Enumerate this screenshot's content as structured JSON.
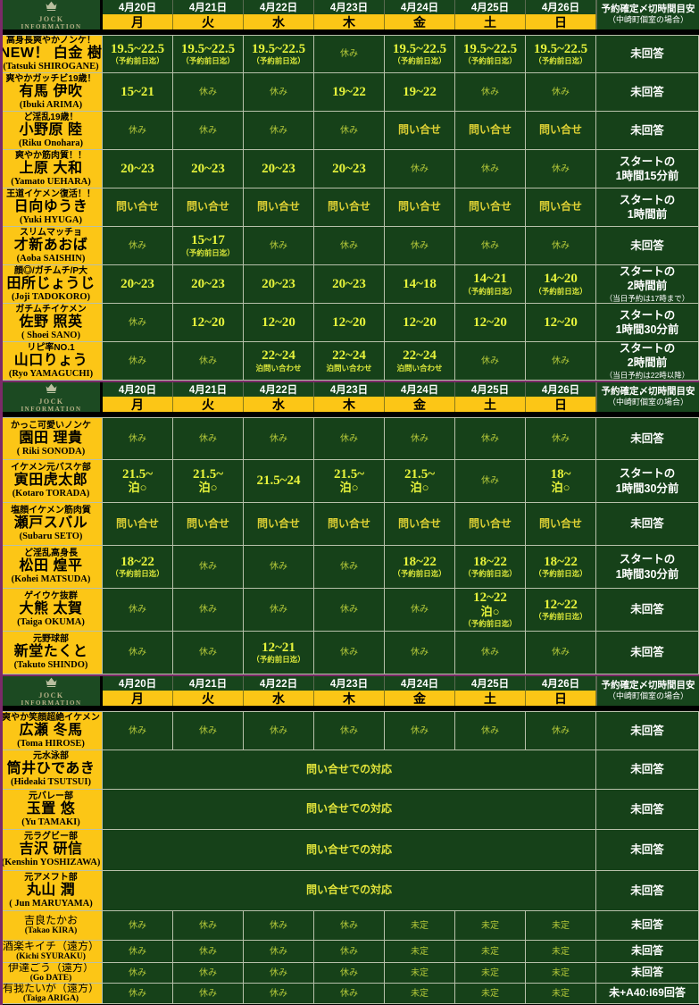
{
  "colors": {
    "gold": "#fcc616",
    "cell_green": "#164119",
    "header_green": "#17451c",
    "logo_green": "#1c4a22",
    "purple": "#7b2a68",
    "time_text": "#e6f33b",
    "off_text": "#b4c839",
    "inquiry_text": "#ddd034",
    "border": "#b7c0aa",
    "white": "#ffffff",
    "black": "#000000"
  },
  "header": {
    "logo": {
      "icon": "crown-icon",
      "line1": "JOCK",
      "line2": "INFORMATION"
    },
    "dates": [
      "4月20日",
      "4月21日",
      "4月22日",
      "4月23日",
      "4月24日",
      "4月25日",
      "4月26日"
    ],
    "days": [
      "月",
      "火",
      "水",
      "木",
      "金",
      "土",
      "日"
    ],
    "deadline_title": "予約確定〆切時間目安",
    "deadline_sub": "（中崎町個室の場合）"
  },
  "sections": [
    {
      "rows": [
        {
          "tag": "高身長爽やかノンケ！",
          "name": "NEW！ 白金 樹",
          "romaji": "(Tatsuki SHIROGANE)",
          "cells": [
            {
              "c": "time",
              "m": "19.5~22.5",
              "s": "（予約前日迄）"
            },
            {
              "c": "time",
              "m": "19.5~22.5",
              "s": "（予約前日迄）"
            },
            {
              "c": "time",
              "m": "19.5~22.5",
              "s": "（予約前日迄）"
            },
            {
              "c": "off",
              "m": "休み"
            },
            {
              "c": "time",
              "m": "19.5~22.5",
              "s": "（予約前日迄）"
            },
            {
              "c": "time",
              "m": "19.5~22.5",
              "s": "（予約前日迄）"
            },
            {
              "c": "time",
              "m": "19.5~22.5",
              "s": "（予約前日迄）"
            }
          ],
          "deadline": {
            "lines": [
              "未回答"
            ]
          }
        },
        {
          "tag": "爽やかガッチビ19歳！",
          "name": "有馬 伊吹",
          "romaji": "(Ibuki ARIMA)",
          "cells": [
            {
              "c": "time",
              "m": "15~21"
            },
            {
              "c": "off",
              "m": "休み"
            },
            {
              "c": "off",
              "m": "休み"
            },
            {
              "c": "time",
              "m": "19~22"
            },
            {
              "c": "time",
              "m": "19~22"
            },
            {
              "c": "off",
              "m": "休み"
            },
            {
              "c": "off",
              "m": "休み"
            }
          ],
          "deadline": {
            "lines": [
              "未回答"
            ]
          }
        },
        {
          "tag": "ど淫乱19歳！",
          "name": "小野原 陸",
          "romaji": "(Riku Onohara)",
          "cells": [
            {
              "c": "off",
              "m": "休み"
            },
            {
              "c": "off",
              "m": "休み"
            },
            {
              "c": "off",
              "m": "休み"
            },
            {
              "c": "off",
              "m": "休み"
            },
            {
              "c": "inq",
              "m": "問い合せ"
            },
            {
              "c": "inq",
              "m": "問い合せ"
            },
            {
              "c": "inq",
              "m": "問い合せ"
            }
          ],
          "deadline": {
            "lines": [
              "未回答"
            ]
          }
        },
        {
          "tag": "爽やか筋肉質！！",
          "name": "上原 大和",
          "romaji": "(Yamato UEHARA)",
          "cells": [
            {
              "c": "time",
              "m": "20~23"
            },
            {
              "c": "time",
              "m": "20~23"
            },
            {
              "c": "time",
              "m": "20~23"
            },
            {
              "c": "time",
              "m": "20~23"
            },
            {
              "c": "off",
              "m": "休み"
            },
            {
              "c": "off",
              "m": "休み"
            },
            {
              "c": "off",
              "m": "休み"
            }
          ],
          "deadline": {
            "lines": [
              "スタートの",
              "1時間15分前"
            ]
          }
        },
        {
          "tag": "王道イケメン復活！！",
          "name": "日向ゆうき",
          "romaji": "(Yuki HYUGA)",
          "cells": [
            {
              "c": "inq",
              "m": "問い合せ"
            },
            {
              "c": "inq",
              "m": "問い合せ"
            },
            {
              "c": "inq",
              "m": "問い合せ"
            },
            {
              "c": "inq",
              "m": "問い合せ"
            },
            {
              "c": "inq",
              "m": "問い合せ"
            },
            {
              "c": "inq",
              "m": "問い合せ"
            },
            {
              "c": "inq",
              "m": "問い合せ"
            }
          ],
          "deadline": {
            "lines": [
              "スタートの",
              "1時間前"
            ]
          }
        },
        {
          "tag": "スリムマッチョ",
          "name": "才新あおば",
          "romaji": "(Aoba SAISHIN)",
          "cells": [
            {
              "c": "off",
              "m": "休み"
            },
            {
              "c": "time",
              "m": "15~17",
              "s": "（予約前日迄）"
            },
            {
              "c": "off",
              "m": "休み"
            },
            {
              "c": "off",
              "m": "休み"
            },
            {
              "c": "off",
              "m": "休み"
            },
            {
              "c": "off",
              "m": "休み"
            },
            {
              "c": "off",
              "m": "休み"
            }
          ],
          "deadline": {
            "lines": [
              "未回答"
            ]
          }
        },
        {
          "tag": "顔◎/ガチムチ/P大",
          "name": "田所じょうじ",
          "romaji": "(Joji TADOKORO)",
          "cells": [
            {
              "c": "time",
              "m": "20~23"
            },
            {
              "c": "time",
              "m": "20~23"
            },
            {
              "c": "time",
              "m": "20~23"
            },
            {
              "c": "time",
              "m": "20~23"
            },
            {
              "c": "time",
              "m": "14~18"
            },
            {
              "c": "time",
              "m": "14~21",
              "s": "（予約前日迄）"
            },
            {
              "c": "time",
              "m": "14~20",
              "s": "（予約前日迄）"
            }
          ],
          "deadline": {
            "lines": [
              "スタートの",
              "2時間前"
            ],
            "note": "（当日予約は17時まで）"
          }
        },
        {
          "tag": "ガチムチイケメン",
          "name": "佐野 照英",
          "romaji": "( Shoei SANO)",
          "cells": [
            {
              "c": "off",
              "m": "休み"
            },
            {
              "c": "time",
              "m": "12~20"
            },
            {
              "c": "time",
              "m": "12~20"
            },
            {
              "c": "time",
              "m": "12~20"
            },
            {
              "c": "time",
              "m": "12~20"
            },
            {
              "c": "time",
              "m": "12~20"
            },
            {
              "c": "time",
              "m": "12~20"
            }
          ],
          "deadline": {
            "lines": [
              "スタートの",
              "1時間30分前"
            ]
          }
        },
        {
          "tag": "リピ率NO.1",
          "name": "山口りょう",
          "romaji": "(Ryo YAMAGUCHI)",
          "cells": [
            {
              "c": "off",
              "m": "休み"
            },
            {
              "c": "off",
              "m": "休み"
            },
            {
              "c": "time",
              "m": "22~24",
              "s": "泊問い合わせ"
            },
            {
              "c": "time",
              "m": "22~24",
              "s": "泊問い合わせ"
            },
            {
              "c": "time",
              "m": "22~24",
              "s": "泊問い合わせ"
            },
            {
              "c": "off",
              "m": "休み"
            },
            {
              "c": "off",
              "m": "休み"
            }
          ],
          "deadline": {
            "lines": [
              "スタートの",
              "2時間前"
            ],
            "note": "（当日予約は22時以降）"
          }
        }
      ]
    },
    {
      "rows": [
        {
          "tag": "かっこ可愛いノンケ",
          "name": "園田 理貴",
          "romaji": "( Riki SONODA)",
          "cells": [
            {
              "c": "off",
              "m": "休み"
            },
            {
              "c": "off",
              "m": "休み"
            },
            {
              "c": "off",
              "m": "休み"
            },
            {
              "c": "off",
              "m": "休み"
            },
            {
              "c": "off",
              "m": "休み"
            },
            {
              "c": "off",
              "m": "休み"
            },
            {
              "c": "off",
              "m": "休み"
            }
          ],
          "deadline": {
            "lines": [
              "未回答"
            ]
          }
        },
        {
          "tag": "イケメン元バスケ部",
          "name": "寅田虎太郎",
          "romaji": "(Kotaro TORADA)",
          "cells": [
            {
              "c": "time",
              "m": "21.5~",
              "m2": "泊○"
            },
            {
              "c": "time",
              "m": "21.5~",
              "m2": "泊○"
            },
            {
              "c": "time",
              "m": "21.5~24"
            },
            {
              "c": "time",
              "m": "21.5~",
              "m2": "泊○"
            },
            {
              "c": "time",
              "m": "21.5~",
              "m2": "泊○"
            },
            {
              "c": "off",
              "m": "休み"
            },
            {
              "c": "time",
              "m": "18~",
              "m2": "泊○"
            }
          ],
          "deadline": {
            "lines": [
              "スタートの",
              "1時間30分前"
            ]
          }
        },
        {
          "tag": "塩顔イケメン筋肉質",
          "name": "瀬戸スバル",
          "romaji": "(Subaru SETO)",
          "cells": [
            {
              "c": "inq",
              "m": "問い合せ"
            },
            {
              "c": "inq",
              "m": "問い合せ"
            },
            {
              "c": "inq",
              "m": "問い合せ"
            },
            {
              "c": "inq",
              "m": "問い合せ"
            },
            {
              "c": "inq",
              "m": "問い合せ"
            },
            {
              "c": "inq",
              "m": "問い合せ"
            },
            {
              "c": "inq",
              "m": "問い合せ"
            }
          ],
          "deadline": {
            "lines": [
              "未回答"
            ]
          }
        },
        {
          "tag": "ど淫乱高身長",
          "name": "松田 煌平",
          "romaji": "(Kohei MATSUDA)",
          "cells": [
            {
              "c": "time",
              "m": "18~22",
              "s": "（予約前日迄）"
            },
            {
              "c": "off",
              "m": "休み"
            },
            {
              "c": "off",
              "m": "休み"
            },
            {
              "c": "off",
              "m": "休み"
            },
            {
              "c": "time",
              "m": "18~22",
              "s": "（予約前日迄）"
            },
            {
              "c": "time",
              "m": "18~22",
              "s": "（予約前日迄）"
            },
            {
              "c": "time",
              "m": "18~22",
              "s": "（予約前日迄）"
            }
          ],
          "deadline": {
            "lines": [
              "スタートの",
              "1時間30分前"
            ]
          }
        },
        {
          "tag": "ゲイウケ抜群",
          "name": "大熊 太賀",
          "romaji": "(Taiga OKUMA)",
          "cells": [
            {
              "c": "off",
              "m": "休み"
            },
            {
              "c": "off",
              "m": "休み"
            },
            {
              "c": "off",
              "m": "休み"
            },
            {
              "c": "off",
              "m": "休み"
            },
            {
              "c": "off",
              "m": "休み"
            },
            {
              "c": "time",
              "m": "12~22",
              "m2": "泊○",
              "s": "（予約前日迄）"
            },
            {
              "c": "time",
              "m": "12~22",
              "s": "（予約前日迄）"
            }
          ],
          "deadline": {
            "lines": [
              "未回答"
            ]
          }
        },
        {
          "tag": "元野球部",
          "name": "新堂たくと",
          "romaji": "(Takuto SHINDO)",
          "cells": [
            {
              "c": "off",
              "m": "休み"
            },
            {
              "c": "off",
              "m": "休み"
            },
            {
              "c": "time",
              "m": "12~21",
              "s": "（予約前日迄）"
            },
            {
              "c": "off",
              "m": "休み"
            },
            {
              "c": "off",
              "m": "休み"
            },
            {
              "c": "off",
              "m": "休み"
            },
            {
              "c": "off",
              "m": "休み"
            }
          ],
          "deadline": {
            "lines": [
              "未回答"
            ]
          }
        }
      ]
    },
    {
      "rows": [
        {
          "tag": "爽やか笑顔超絶イケメン",
          "name": "広瀬 冬馬",
          "romaji": "(Toma HIROSE)",
          "cells": [
            {
              "c": "off",
              "m": "休み"
            },
            {
              "c": "off",
              "m": "休み"
            },
            {
              "c": "off",
              "m": "休み"
            },
            {
              "c": "off",
              "m": "休み"
            },
            {
              "c": "off",
              "m": "休み"
            },
            {
              "c": "off",
              "m": "休み"
            },
            {
              "c": "off",
              "m": "休み"
            }
          ],
          "deadline": {
            "lines": [
              "未回答"
            ]
          }
        },
        {
          "tag": "元水泳部",
          "name": "筒井ひであき",
          "romaji": "(Hideaki TSUTSUI)",
          "cells": [
            {
              "c": "wide",
              "m": "問い合せでの対応",
              "span": 7
            }
          ],
          "deadline": {
            "lines": [
              "未回答"
            ]
          }
        },
        {
          "tag": "元バレー部",
          "name": "玉置 悠",
          "romaji": "(Yu TAMAKI)",
          "cells": [
            {
              "c": "wide",
              "m": "問い合せでの対応",
              "span": 7
            }
          ],
          "deadline": {
            "lines": [
              "未回答"
            ]
          }
        },
        {
          "tag": "元ラグビー部",
          "name": "吉沢 研信",
          "romaji": "(Kenshin YOSHIZAWA)",
          "cells": [
            {
              "c": "wide",
              "m": "問い合せでの対応",
              "span": 7
            }
          ],
          "deadline": {
            "lines": [
              "未回答"
            ]
          }
        },
        {
          "tag": "元アメフト部",
          "name": "丸山 潤",
          "romaji": "( Jun MARUYAMA)",
          "cells": [
            {
              "c": "wide",
              "m": "問い合せでの対応",
              "span": 7
            }
          ],
          "deadline": {
            "lines": [
              "未回答"
            ]
          }
        },
        {
          "small": true,
          "name": "吉良たかお",
          "romaji": "(Takao KIRA)",
          "cells": [
            {
              "c": "off",
              "m": "休み"
            },
            {
              "c": "off",
              "m": "休み"
            },
            {
              "c": "off",
              "m": "休み"
            },
            {
              "c": "off",
              "m": "休み"
            },
            {
              "c": "tbd",
              "m": "未定"
            },
            {
              "c": "tbd",
              "m": "未定"
            },
            {
              "c": "tbd",
              "m": "未定"
            }
          ],
          "deadline": {
            "lines": [
              "未回答"
            ]
          }
        },
        {
          "small": true,
          "name": "酒楽キイチ（遠方）",
          "romaji": "(Kichi SYURAKU)",
          "cells": [
            {
              "c": "off",
              "m": "休み"
            },
            {
              "c": "off",
              "m": "休み"
            },
            {
              "c": "off",
              "m": "休み"
            },
            {
              "c": "off",
              "m": "休み"
            },
            {
              "c": "tbd",
              "m": "未定"
            },
            {
              "c": "tbd",
              "m": "未定"
            },
            {
              "c": "tbd",
              "m": "未定"
            }
          ],
          "deadline": {
            "lines": [
              "未回答"
            ]
          }
        },
        {
          "small": true,
          "name": "伊達ごう（遠方）",
          "romaji": "(Go DATE)",
          "cells": [
            {
              "c": "off",
              "m": "休み"
            },
            {
              "c": "off",
              "m": "休み"
            },
            {
              "c": "off",
              "m": "休み"
            },
            {
              "c": "off",
              "m": "休み"
            },
            {
              "c": "tbd",
              "m": "未定"
            },
            {
              "c": "tbd",
              "m": "未定"
            },
            {
              "c": "tbd",
              "m": "未定"
            }
          ],
          "deadline": {
            "lines": [
              "未回答"
            ]
          }
        },
        {
          "small": true,
          "name": "有我たいが（遠方）",
          "romaji": "(Taiga ARIGA)",
          "cells": [
            {
              "c": "off",
              "m": "休み"
            },
            {
              "c": "off",
              "m": "休み"
            },
            {
              "c": "off",
              "m": "休み"
            },
            {
              "c": "off",
              "m": "休み"
            },
            {
              "c": "tbd",
              "m": "未定"
            },
            {
              "c": "tbd",
              "m": "未定"
            },
            {
              "c": "tbd",
              "m": "未定"
            }
          ],
          "deadline": {
            "lines": [
              "未+A40:I69回答"
            ]
          }
        }
      ]
    }
  ]
}
